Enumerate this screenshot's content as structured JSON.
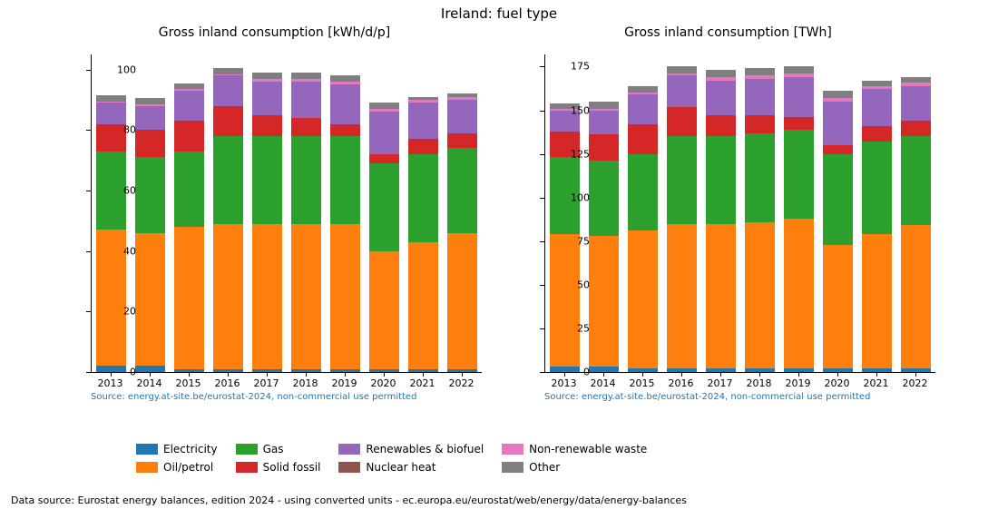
{
  "suptitle": "Ireland: fuel type",
  "footer": "Data source: Eurostat energy balances, edition 2024 - using converted units - ec.europa.eu/eurostat/web/energy/data/energy-balances",
  "series_order": [
    "electricity",
    "oil",
    "gas",
    "solid_fossil",
    "renewables",
    "nuclear",
    "waste",
    "other"
  ],
  "series_meta": {
    "electricity": {
      "label": "Electricity",
      "color": "#1f77b4"
    },
    "oil": {
      "label": "Oil/petrol",
      "color": "#ff7f0e"
    },
    "gas": {
      "label": "Gas",
      "color": "#2ca02c"
    },
    "solid_fossil": {
      "label": "Solid fossil",
      "color": "#d62728"
    },
    "renewables": {
      "label": "Renewables & biofuel",
      "color": "#9467bd"
    },
    "nuclear": {
      "label": "Nuclear heat",
      "color": "#8c564b"
    },
    "waste": {
      "label": "Non-renewable waste",
      "color": "#e377c2"
    },
    "other": {
      "label": "Other",
      "color": "#7f7f7f"
    }
  },
  "legend_columns": [
    [
      "electricity",
      "oil"
    ],
    [
      "gas",
      "solid_fossil"
    ],
    [
      "renewables",
      "nuclear"
    ],
    [
      "waste",
      "other"
    ]
  ],
  "categories": [
    "2013",
    "2014",
    "2015",
    "2016",
    "2017",
    "2018",
    "2019",
    "2020",
    "2021",
    "2022"
  ],
  "panels": [
    {
      "id": "left",
      "title": "Gross inland consumption [kWh/d/p]",
      "ylim": [
        0,
        105
      ],
      "ytick_step": 20,
      "bar_width": 0.75,
      "background_color": "#ffffff",
      "source_note": "Source: energy.at-site.be/eurostat-2024, non-commercial use permitted",
      "source_note_color": "#1f77b4",
      "title_fontsize": 14,
      "tick_fontsize": 11,
      "data": {
        "electricity": [
          2,
          2,
          1,
          1,
          1,
          1,
          1,
          1,
          1,
          1
        ],
        "oil": [
          45,
          44,
          47,
          48,
          48,
          48,
          48,
          39,
          42,
          45
        ],
        "gas": [
          26,
          25,
          25,
          29,
          29,
          29,
          29,
          29,
          29,
          28
        ],
        "solid_fossil": [
          9,
          9,
          10,
          10,
          7,
          6,
          4,
          3,
          5,
          5
        ],
        "renewables": [
          7,
          8,
          10,
          10,
          11,
          12,
          13,
          14,
          12,
          11
        ],
        "nuclear": [
          0,
          0,
          0,
          0,
          0,
          0,
          0,
          0,
          0,
          0
        ],
        "waste": [
          0.5,
          0.5,
          0.5,
          0.5,
          1,
          1,
          1,
          1,
          1,
          1
        ],
        "other": [
          2,
          2,
          2,
          2,
          2,
          2,
          2,
          2,
          1,
          1
        ]
      }
    },
    {
      "id": "right",
      "title": "Gross inland consumption [TWh]",
      "ylim": [
        0,
        182
      ],
      "ytick_step": 25,
      "bar_width": 0.75,
      "background_color": "#ffffff",
      "source_note": "Source: energy.at-site.be/eurostat-2024, non-commercial use permitted",
      "source_note_color": "#1f77b4",
      "title_fontsize": 14,
      "tick_fontsize": 11,
      "data": {
        "electricity": [
          3,
          3,
          2,
          2,
          2,
          2,
          2,
          2,
          2,
          2
        ],
        "oil": [
          76,
          75,
          79,
          83,
          83,
          84,
          86,
          71,
          77,
          82
        ],
        "gas": [
          44,
          43,
          44,
          50,
          50,
          51,
          51,
          52,
          53,
          51
        ],
        "solid_fossil": [
          15,
          15,
          17,
          17,
          12,
          10,
          7,
          5,
          9,
          9
        ],
        "renewables": [
          12,
          14,
          17,
          18,
          20,
          21,
          23,
          25,
          21,
          20
        ],
        "nuclear": [
          0,
          0,
          0,
          0,
          0,
          0,
          0,
          0,
          0,
          0
        ],
        "waste": [
          1,
          1,
          1,
          1,
          2,
          2,
          2,
          2,
          2,
          2
        ],
        "other": [
          3,
          4,
          4,
          4,
          4,
          4,
          4,
          4,
          3,
          3
        ]
      }
    }
  ]
}
